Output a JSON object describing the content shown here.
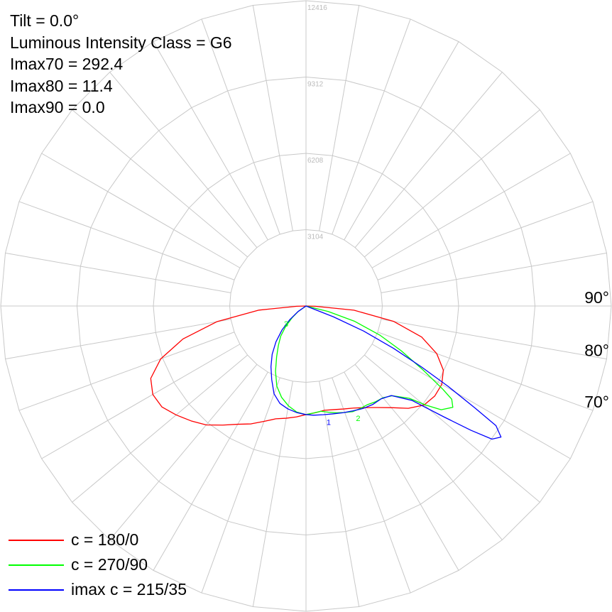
{
  "info": {
    "tilt": "Tilt = 0.0°",
    "intensity_class": "Luminous Intensity Class = G6",
    "imax70": "Imax70 = 292.4",
    "imax80": "Imax80 = 11.4",
    "imax90": "Imax90 = 0.0"
  },
  "legend": [
    {
      "label": "c = 180/0",
      "color": "#ff0000"
    },
    {
      "label": "c = 270/90",
      "color": "#00ff00"
    },
    {
      "label": "imax c = 215/35",
      "color": "#0000ff"
    }
  ],
  "chart_data": {
    "type": "polar",
    "ring_labels": [
      "3104",
      "6208",
      "9312",
      "12416"
    ],
    "angle_labels": [
      "90°",
      "80°",
      "70°"
    ],
    "grid": true,
    "rmax": 12416,
    "series": [
      {
        "name": "c = 180/0",
        "color": "#ff0000",
        "points": [
          [
            0,
            4416
          ],
          [
            -5,
            4528
          ],
          [
            -10,
            4634
          ],
          [
            -15,
            4750
          ],
          [
            -20,
            4994
          ],
          [
            -25,
            5290
          ],
          [
            -30,
            5554
          ],
          [
            -35,
            5912
          ],
          [
            -40,
            6313
          ],
          [
            -45,
            6608
          ],
          [
            -50,
            6893
          ],
          [
            -55,
            7155
          ],
          [
            -60,
            7195
          ],
          [
            -65,
            6968
          ],
          [
            -70,
            6288
          ],
          [
            -75,
            5180
          ],
          [
            -80,
            3686
          ],
          [
            -85,
            1921
          ],
          [
            -88.5,
            376
          ],
          [
            -89.3,
            0
          ],
          [
            89.3,
            0
          ],
          [
            88.5,
            373
          ],
          [
            85,
            1955
          ],
          [
            80,
            3627
          ],
          [
            75,
            4869
          ],
          [
            70,
            5657
          ],
          [
            65,
            6163
          ],
          [
            60,
            6376
          ],
          [
            55,
            6390
          ],
          [
            50,
            6264
          ],
          [
            45,
            5886
          ],
          [
            40,
            5397
          ],
          [
            35,
            5040
          ],
          [
            30,
            4771
          ],
          [
            25,
            4580
          ],
          [
            20,
            4458
          ],
          [
            15,
            4363
          ],
          [
            10,
            4306
          ],
          [
            5,
            4357
          ],
          [
            0,
            4416
          ]
        ]
      },
      {
        "name": "c = 270/90",
        "color": "#00ff00",
        "points": [
          [
            0,
            4416
          ],
          [
            -5,
            4329
          ],
          [
            -10,
            4122
          ],
          [
            -15,
            3843
          ],
          [
            -20,
            3470
          ],
          [
            -25,
            2934
          ],
          [
            -30,
            2390
          ],
          [
            -35,
            1961
          ],
          [
            -40,
            1599
          ],
          [
            -45,
            1162
          ],
          [
            -50,
            725
          ],
          [
            -55,
            382
          ],
          [
            -56.9,
            0
          ],
          [
            78.9,
            0
          ],
          [
            76.1,
            932
          ],
          [
            72.5,
            2080
          ],
          [
            68.5,
            3223
          ],
          [
            64.8,
            4282
          ],
          [
            61.5,
            5368
          ],
          [
            58.7,
            6507
          ],
          [
            57.4,
            7035
          ],
          [
            55.4,
            7255
          ],
          [
            52.5,
            6930
          ],
          [
            50.4,
            6318
          ],
          [
            48.2,
            5633
          ],
          [
            43.9,
            5064
          ],
          [
            40,
            4871
          ],
          [
            36,
            4814
          ],
          [
            32,
            4728
          ],
          [
            28,
            4717
          ],
          [
            24,
            4699
          ],
          [
            20,
            4609
          ],
          [
            16,
            4518
          ],
          [
            12,
            4418
          ],
          [
            8,
            4323
          ],
          [
            4,
            4362
          ],
          [
            0,
            4416
          ]
        ]
      },
      {
        "name": "imax c = 215/35",
        "color": "#0000ff",
        "points": [
          [
            0,
            4416
          ],
          [
            -5,
            4350
          ],
          [
            -10,
            4250
          ],
          [
            -15,
            4100
          ],
          [
            -20,
            3800
          ],
          [
            -25,
            3300
          ],
          [
            -30,
            2850
          ],
          [
            -35,
            2400
          ],
          [
            -40,
            1900
          ],
          [
            -45,
            1380
          ],
          [
            -50,
            850
          ],
          [
            -55,
            400
          ],
          [
            -58.8,
            0
          ],
          [
            70.4,
            0
          ],
          [
            68.5,
            1200
          ],
          [
            66.5,
            2550
          ],
          [
            64.2,
            3950
          ],
          [
            62.2,
            5300
          ],
          [
            60.5,
            6650
          ],
          [
            58.9,
            8020
          ],
          [
            57.8,
            9130
          ],
          [
            56.1,
            9556
          ],
          [
            54.4,
            9300
          ],
          [
            53,
            8400
          ],
          [
            51.2,
            7200
          ],
          [
            48.3,
            5770
          ],
          [
            43.6,
            5029
          ],
          [
            39,
            4858
          ],
          [
            34,
            4838
          ],
          [
            29,
            4768
          ],
          [
            24,
            4670
          ],
          [
            19,
            4592
          ],
          [
            14,
            4521
          ],
          [
            9,
            4477
          ],
          [
            4,
            4452
          ],
          [
            0,
            4416
          ]
        ]
      }
    ],
    "curve_labels": [
      {
        "text": "1",
        "angle": 10,
        "r": 4800,
        "color": "#0000ff"
      },
      {
        "text": "2",
        "angle": 24,
        "r": 5000,
        "color": "#00ff00"
      },
      {
        "text": "3",
        "angle": -51,
        "r": 1150,
        "color": "#00ff00"
      }
    ]
  }
}
